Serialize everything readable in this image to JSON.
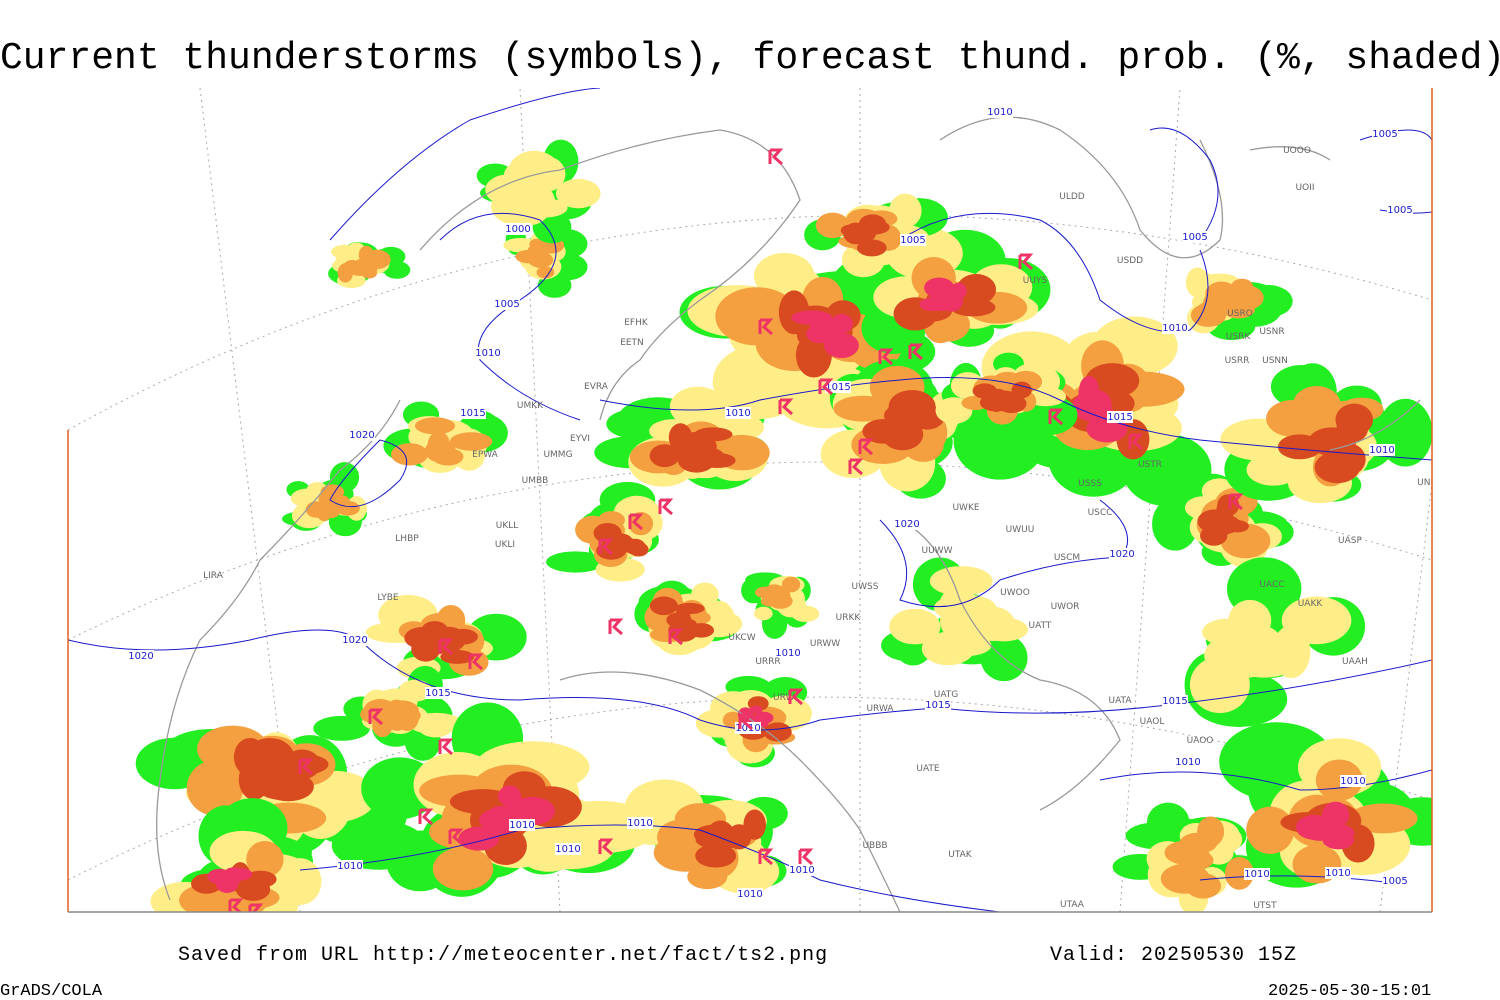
{
  "header": {
    "title": "Current thunderstorms (symbols), forecast thund. prob. (%, shaded)"
  },
  "map": {
    "isobar_labels": [
      1010,
      1005,
      1005,
      1000,
      1005,
      1005,
      1005,
      1010,
      1010,
      1015,
      1015,
      1010,
      1015,
      1020,
      1010,
      1020,
      1020,
      1020,
      1020,
      1010,
      1015,
      1015,
      1015,
      1010,
      1010,
      1010,
      1010,
      1010,
      1010,
      1010,
      1010,
      1010,
      1010,
      1005,
      1010
    ],
    "station_labels": [
      "ULDD",
      "UOOO",
      "UOII",
      "USDD",
      "UUYS",
      "USRO",
      "USRK",
      "USNR",
      "USRR",
      "USNN",
      "EFHK",
      "EETN",
      "EVRA",
      "UMKK",
      "EPWA",
      "UMMG",
      "EYVI",
      "UMBB",
      "UKLL",
      "UKLI",
      "LHBP",
      "LIRA",
      "LYBE",
      "UKCW",
      "URRR",
      "URWI",
      "URWA",
      "UATG",
      "UATE",
      "UBBB",
      "UTAK",
      "UTAA",
      "UTST",
      "UAOL",
      "UAOO",
      "UATA",
      "UATT",
      "UWOR",
      "UWOO",
      "USCM",
      "UWUU",
      "UWKE",
      "USSS",
      "USCC",
      "USTR",
      "UASP",
      "UACC",
      "UAKK",
      "UAAH",
      "UNBB",
      "UWSS",
      "URWW",
      "URKK",
      "UUWW"
    ]
  },
  "footer": {
    "source": "Saved from URL http://meteocenter.net/fact/ts2.png",
    "valid": "Valid: 20250530 15Z",
    "software": "GrADS/COLA",
    "timestamp": "2025-05-30-15:01"
  }
}
